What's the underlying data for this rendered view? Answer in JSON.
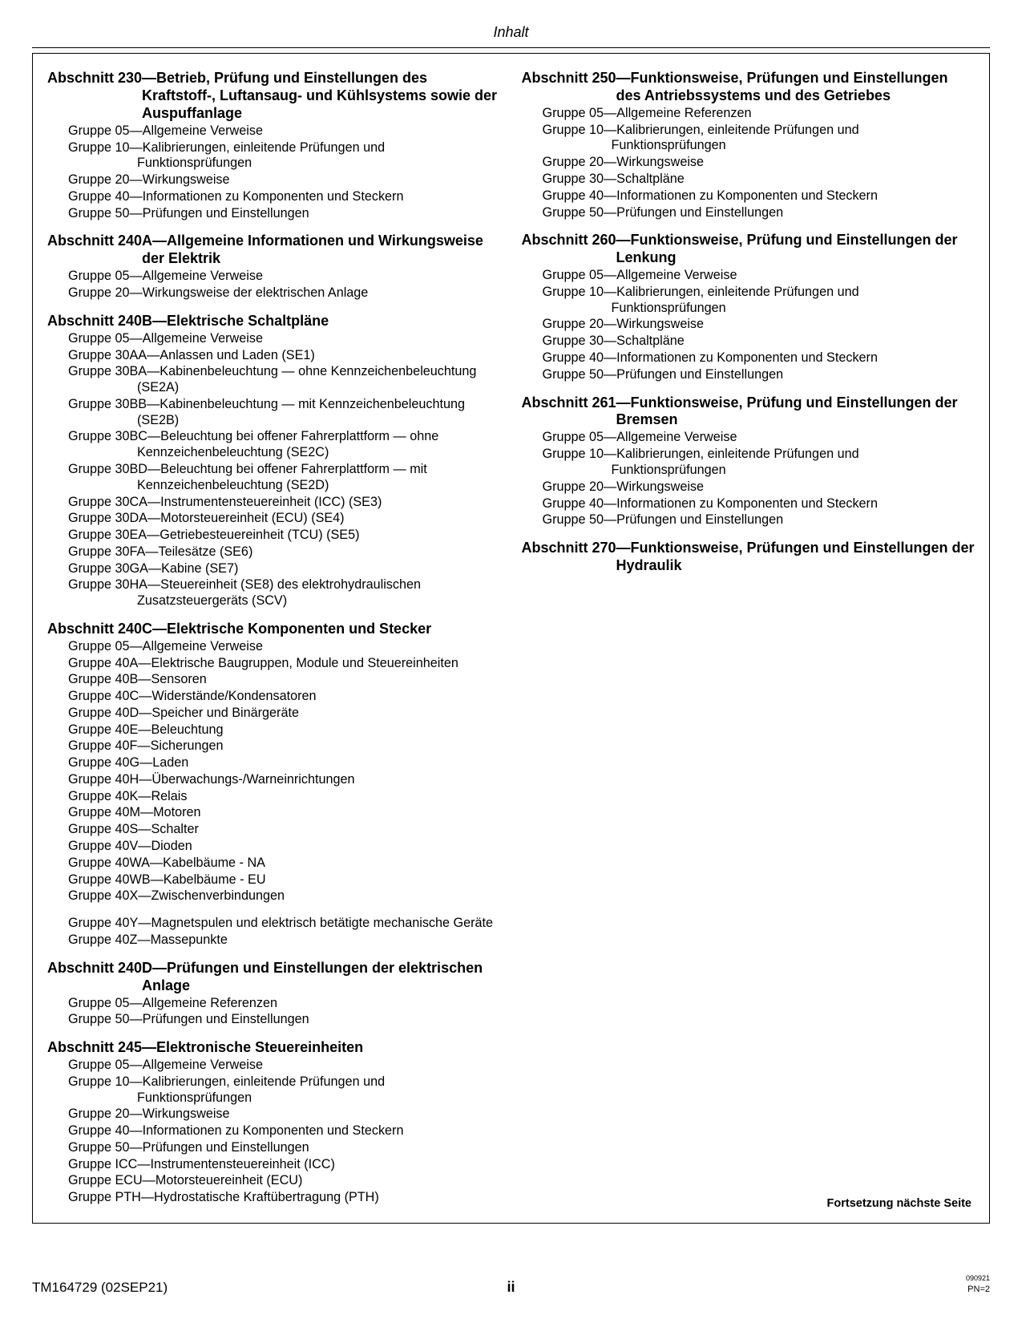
{
  "header": {
    "title": "Inhalt"
  },
  "footer": {
    "left": "TM164729 (02SEP21)",
    "center": "ii",
    "right_small": "090921",
    "right_pn": "PN=2"
  },
  "continued": "Fortsetzung nächste Seite",
  "sections": [
    {
      "title": "Abschnitt 230—Betrieb, Prüfung und Einstellungen des Kraftstoff-, Luftansaug- und Kühlsystems sowie der Auspuffanlage",
      "entries": [
        "Gruppe 05—Allgemeine Verweise",
        "Gruppe 10—Kalibrierungen, einleitende Prüfungen und Funktionsprüfungen",
        "Gruppe 20—Wirkungsweise",
        "Gruppe 40—Informationen zu Komponenten und Steckern",
        "Gruppe 50—Prüfungen und Einstellungen"
      ]
    },
    {
      "title": "Abschnitt 240A—Allgemeine Informationen und Wirkungsweise der Elektrik",
      "entries": [
        "Gruppe 05—Allgemeine Verweise",
        "Gruppe 20—Wirkungsweise der elektrischen Anlage"
      ]
    },
    {
      "title": "Abschnitt 240B—Elektrische Schaltpläne",
      "entries": [
        "Gruppe 05—Allgemeine Verweise",
        "Gruppe 30AA—Anlassen und Laden (SE1)",
        "Gruppe 30BA—Kabinenbeleuchtung — ohne Kennzeichenbeleuchtung (SE2A)",
        "Gruppe 30BB—Kabinenbeleuchtung — mit Kennzeichenbeleuchtung (SE2B)",
        "Gruppe 30BC—Beleuchtung bei offener Fahrerplattform — ohne Kennzeichenbeleuchtung (SE2C)",
        "Gruppe 30BD—Beleuchtung bei offener Fahrerplattform — mit Kennzeichenbeleuchtung (SE2D)",
        "Gruppe 30CA—Instrumentensteuereinheit (ICC) (SE3)",
        "Gruppe 30DA—Motorsteuereinheit (ECU) (SE4)",
        "Gruppe 30EA—Getriebesteuereinheit (TCU) (SE5)",
        "Gruppe 30FA—Teilesätze (SE6)",
        "Gruppe 30GA—Kabine (SE7)",
        "Gruppe 30HA—Steuereinheit (SE8) des elektrohydraulischen Zusatzsteuergeräts (SCV)"
      ]
    },
    {
      "title": "Abschnitt 240C—Elektrische Komponenten und Stecker",
      "entries": [
        "Gruppe 05—Allgemeine Verweise",
        "Gruppe 40A—Elektrische Baugruppen, Module und Steuereinheiten",
        "Gruppe 40B—Sensoren",
        "Gruppe 40C—Widerstände/Kondensatoren",
        "Gruppe 40D—Speicher und Binärgeräte",
        "Gruppe 40E—Beleuchtung",
        "Gruppe 40F—Sicherungen",
        "Gruppe 40G—Laden",
        "Gruppe 40H—Überwachungs-/Warneinrichtungen",
        "Gruppe 40K—Relais",
        "Gruppe 40M—Motoren",
        "Gruppe 40S—Schalter",
        "Gruppe 40V—Dioden",
        "Gruppe 40WA—Kabelbäume - NA",
        "Gruppe 40WB—Kabelbäume - EU",
        "Gruppe 40X—Zwischenverbindungen",
        "Gruppe 40Y—Magnetspulen und elektrisch betätigte mechanische Geräte",
        "Gruppe 40Z—Massepunkte"
      ]
    },
    {
      "title": "Abschnitt 240D—Prüfungen und Einstellungen der elektrischen Anlage",
      "entries": [
        "Gruppe 05—Allgemeine Referenzen",
        "Gruppe 50—Prüfungen und Einstellungen"
      ]
    },
    {
      "title": "Abschnitt 245—Elektronische Steuereinheiten",
      "entries": [
        "Gruppe 05—Allgemeine Verweise",
        "Gruppe 10—Kalibrierungen, einleitende Prüfungen und Funktionsprüfungen",
        "Gruppe 20—Wirkungsweise",
        "Gruppe 40—Informationen zu Komponenten und Steckern",
        "Gruppe 50—Prüfungen und Einstellungen",
        "Gruppe ICC—Instrumentensteuereinheit (ICC)",
        "Gruppe ECU—Motorsteuereinheit (ECU)",
        "Gruppe PTH—Hydrostatische Kraftübertragung (PTH)"
      ]
    },
    {
      "title": "Abschnitt 250—Funktionsweise, Prüfungen und Einstellungen des Antriebssystems und des Getriebes",
      "entries": [
        "Gruppe 05—Allgemeine Referenzen",
        "Gruppe 10—Kalibrierungen, einleitende Prüfungen und Funktionsprüfungen",
        "Gruppe 20—Wirkungsweise",
        "Gruppe 30—Schaltpläne",
        "Gruppe 40—Informationen zu Komponenten und Steckern",
        "Gruppe 50—Prüfungen und Einstellungen"
      ]
    },
    {
      "title": "Abschnitt 260—Funktionsweise, Prüfung und Einstellungen der Lenkung",
      "entries": [
        "Gruppe 05—Allgemeine Verweise",
        "Gruppe 10—Kalibrierungen, einleitende Prüfungen und Funktionsprüfungen",
        "Gruppe 20—Wirkungsweise",
        "Gruppe 30—Schaltpläne",
        "Gruppe 40—Informationen zu Komponenten und Steckern",
        "Gruppe 50—Prüfungen und Einstellungen"
      ]
    },
    {
      "title": "Abschnitt 261—Funktionsweise, Prüfung und Einstellungen der Bremsen",
      "entries": [
        "Gruppe 05—Allgemeine Verweise",
        "Gruppe 10—Kalibrierungen, einleitende Prüfungen und Funktionsprüfungen",
        "Gruppe 20—Wirkungsweise",
        "Gruppe 40—Informationen zu Komponenten und Steckern",
        "Gruppe 50—Prüfungen und Einstellungen"
      ]
    },
    {
      "title": "Abschnitt 270—Funktionsweise, Prüfungen und Einstellungen der Hydraulik",
      "entries": []
    }
  ],
  "split_section_index": 3,
  "split_after_entry": 15
}
